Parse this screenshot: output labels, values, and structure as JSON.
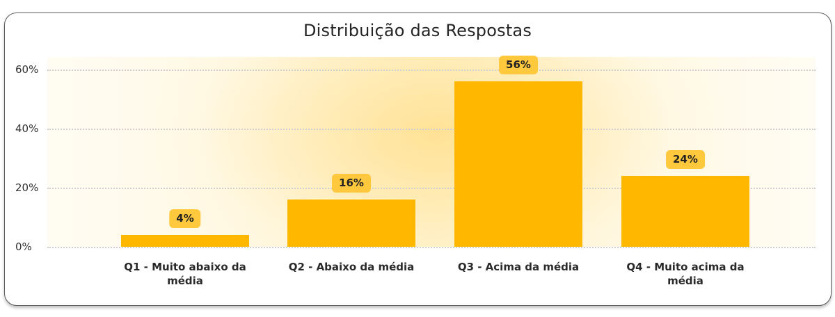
{
  "chart_data": {
    "type": "bar",
    "title": "Distribuição das Respostas",
    "categories": [
      "Q1 - Muito abaixo da média",
      "Q2 - Abaixo da média",
      "Q3 - Acima da média",
      "Q4 - Muito acima da média"
    ],
    "values": [
      4,
      16,
      56,
      24
    ],
    "value_labels": [
      "4%",
      "16%",
      "56%",
      "24%"
    ],
    "xlabel": "",
    "ylabel": "",
    "ylim": [
      0,
      60
    ],
    "yticks": [
      "0%",
      "20%",
      "40%",
      "60%"
    ],
    "grid": true,
    "grid_style": "dotted horizontal",
    "legend": null,
    "bar_color": "#FFB700",
    "label_badge_color": "#FFC83D"
  },
  "card": {
    "title": "Distribuição das Respostas"
  },
  "axis": {
    "y_ticks": [
      {
        "label": "60%",
        "value": 60
      },
      {
        "label": "40%",
        "value": 40
      },
      {
        "label": "20%",
        "value": 20
      },
      {
        "label": "0%",
        "value": 0
      }
    ]
  },
  "bars": [
    {
      "label": "Q1 - Muito abaixo da média",
      "value": 4,
      "value_label": "4%"
    },
    {
      "label": "Q2 - Abaixo da média",
      "value": 16,
      "value_label": "16%"
    },
    {
      "label": "Q3 - Acima da média",
      "value": 56,
      "value_label": "56%"
    },
    {
      "label": "Q4 - Muito acima da média",
      "value": 24,
      "value_label": "24%"
    }
  ],
  "colors": {
    "bar": "#FFB700",
    "badge": "#FFC83D",
    "border": "#5a5a5a"
  }
}
